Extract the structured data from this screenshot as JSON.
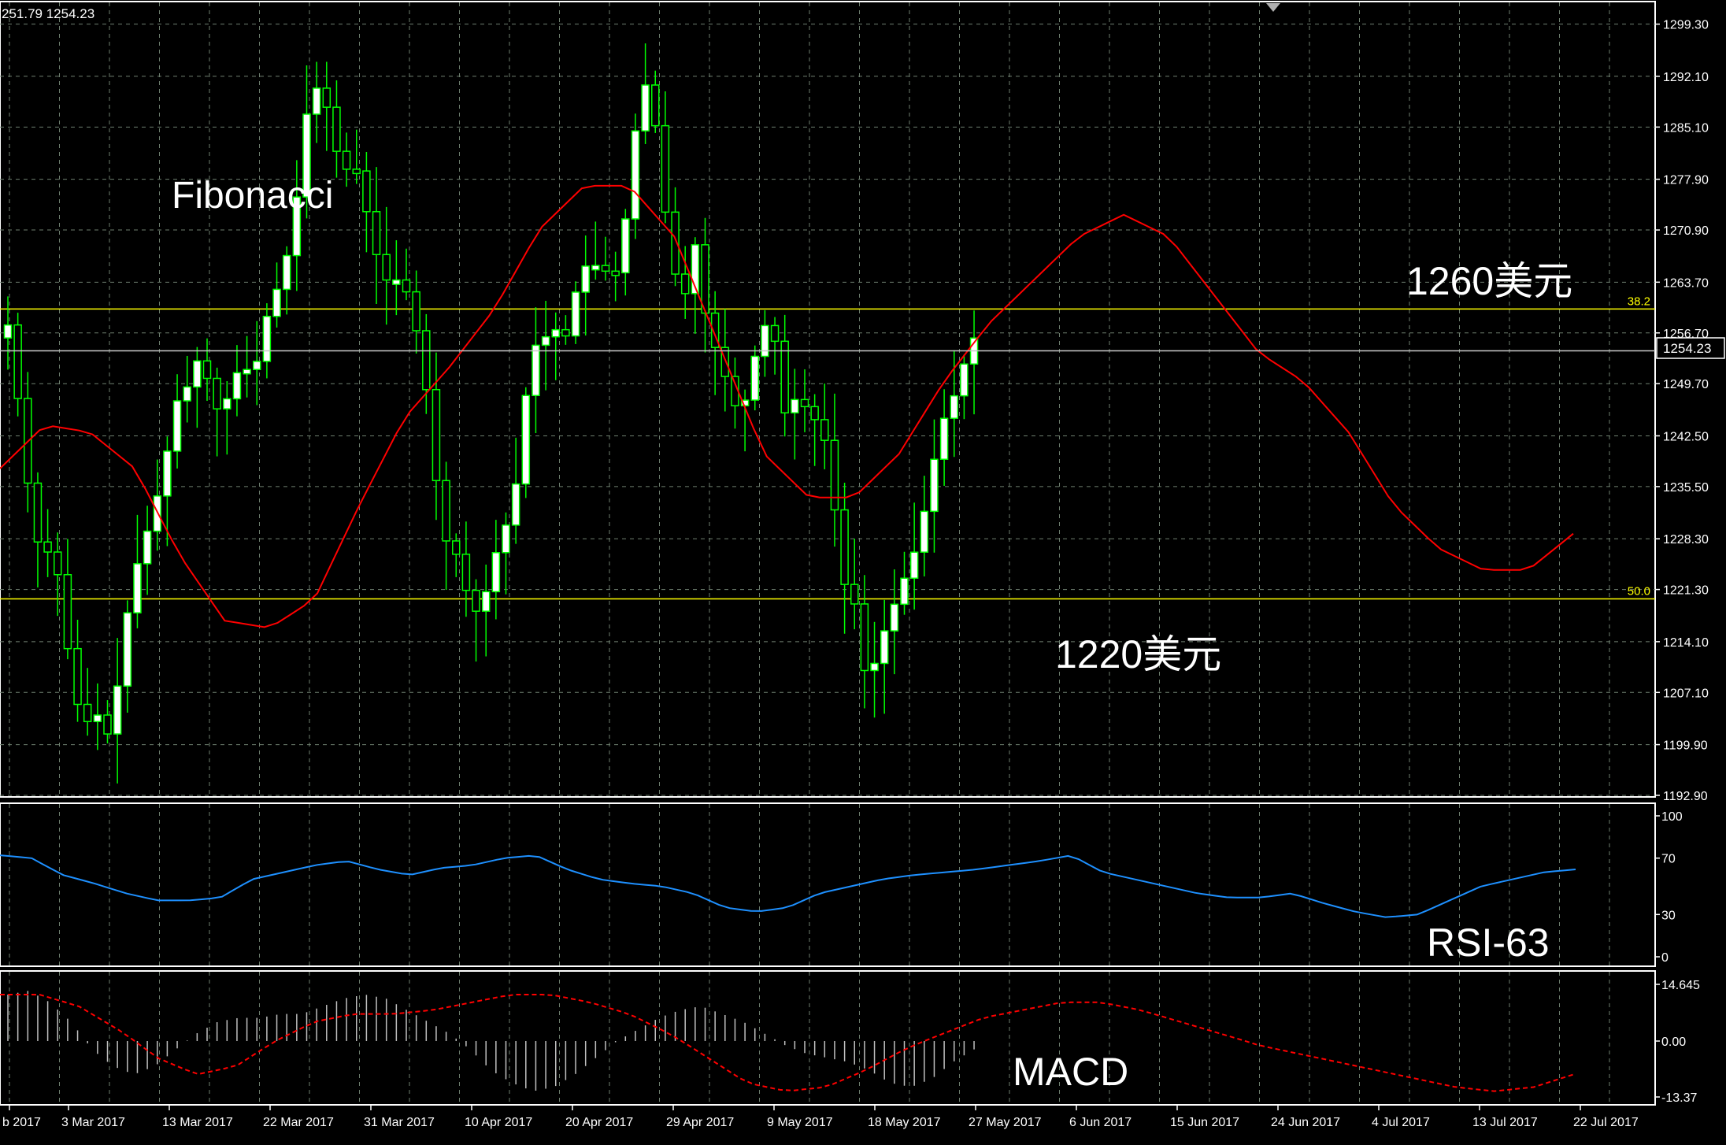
{
  "chart_data": {
    "type": "candlestick",
    "header_text": "251.79 1254.23",
    "current_price": "1254.23",
    "annotations": {
      "fibonacci": "Fibonacci",
      "upper_price": "1260美元",
      "lower_price": "1220美元",
      "rsi": "RSI-63",
      "macd": "MACD"
    },
    "price_axis": {
      "ylim": [
        1192.9,
        1301.0
      ],
      "ticks": [
        "1299.30",
        "1292.10",
        "1285.10",
        "1277.90",
        "1270.90",
        "1263.70",
        "1256.70",
        "1249.70",
        "1242.50",
        "1235.50",
        "1228.30",
        "1221.30",
        "1214.10",
        "1207.10",
        "1199.90",
        "1192.90"
      ]
    },
    "fib_levels": [
      {
        "label": "38.2",
        "value": 1260.0
      },
      {
        "label": "50.0",
        "value": 1220.0
      }
    ],
    "x_ticks": [
      "b 2017",
      "3 Mar 2017",
      "13 Mar 2017",
      "22 Mar 2017",
      "31 Mar 2017",
      "10 Apr 2017",
      "20 Apr 2017",
      "29 Apr 2017",
      "9 May 2017",
      "18 May 2017",
      "27 May 2017",
      "6 Jun 2017",
      "15 Jun 2017",
      "24 Jun 2017",
      "4 Jul 2017",
      "13 Jul 2017",
      "22 Jul 2017"
    ],
    "rsi_axis": {
      "ylim": [
        0,
        100
      ],
      "ticks": [
        "100",
        "70",
        "30",
        "0"
      ]
    },
    "macd_axis": {
      "ylim": [
        -13.37,
        14.645
      ],
      "ticks": [
        "14.645",
        "0.00",
        "-13.37"
      ]
    },
    "candle_waypoints": [
      1256,
      1258,
      1245,
      1232,
      1225,
      1228,
      1216,
      1206,
      1203,
      1204,
      1201,
      1210,
      1222,
      1227,
      1232,
      1238,
      1247,
      1249,
      1253,
      1250,
      1245,
      1249,
      1253,
      1250,
      1258,
      1262,
      1267,
      1276,
      1289,
      1291,
      1286,
      1278,
      1281,
      1275,
      1268,
      1264,
      1264,
      1262,
      1255,
      1245,
      1228,
      1228,
      1222,
      1218,
      1221,
      1227,
      1231,
      1238,
      1255,
      1255,
      1258,
      1255,
      1262,
      1266,
      1266,
      1265,
      1265,
      1278,
      1292,
      1289,
      1275,
      1265,
      1262,
      1270,
      1256,
      1254,
      1248,
      1245,
      1252,
      1258,
      1256,
      1245,
      1248,
      1246,
      1244,
      1240,
      1222,
      1222,
      1210,
      1211,
      1216,
      1220,
      1224,
      1228,
      1236,
      1244,
      1247,
      1252,
      1256
    ],
    "ma_waypoints": [
      1238,
      1244,
      1243,
      1238,
      1226,
      1217,
      1216,
      1220,
      1233,
      1245,
      1252,
      1260,
      1271,
      1277,
      1277,
      1270,
      1255,
      1240,
      1234,
      1234,
      1240,
      1250,
      1258,
      1264,
      1270,
      1273,
      1270,
      1262,
      1254,
      1250,
      1243,
      1233,
      1227,
      1224,
      1224,
      1229
    ],
    "rsi_waypoints": [
      72,
      70,
      58,
      52,
      45,
      40,
      40,
      42,
      55,
      60,
      65,
      68,
      62,
      58,
      63,
      65,
      70,
      72,
      62,
      55,
      52,
      50,
      45,
      35,
      32,
      35,
      45,
      50,
      55,
      58,
      60,
      62,
      65,
      68,
      72,
      60,
      55,
      50,
      45,
      42,
      42,
      45,
      38,
      32,
      28,
      30,
      40,
      50,
      55,
      60,
      62
    ],
    "macd_hist_waypoints": [
      12,
      13,
      10,
      5,
      -2,
      -6,
      -8,
      -6,
      -2,
      2,
      5,
      6,
      6,
      7,
      7,
      9,
      11,
      12,
      11,
      8,
      5,
      2,
      -2,
      -7,
      -10,
      -12,
      -11,
      -8,
      -4,
      0,
      3,
      6,
      8,
      9,
      7,
      5,
      2,
      -1,
      -3,
      -4,
      -5,
      -7,
      -10,
      -11,
      -9,
      -5,
      -2
    ],
    "macd_signal_waypoints": [
      12,
      12,
      9,
      3,
      -4,
      -8,
      -6,
      0,
      5,
      7,
      7,
      8,
      10,
      12,
      12,
      10,
      7,
      2,
      -4,
      -10,
      -12,
      -11,
      -7,
      -2,
      2,
      6,
      8,
      10,
      10,
      8,
      5,
      2,
      -1,
      -3,
      -5,
      -7,
      -9,
      -11,
      -12,
      -11,
      -8
    ],
    "colors": {
      "background": "#000000",
      "grid": "#6f8070",
      "candle": "#00ff00",
      "candle_body_fill": "#ffffff",
      "ma_line": "#ff0000",
      "fib_line": "#ffff00",
      "rsi_line": "#1e90ff",
      "macd_hist": "#c0c0c0",
      "macd_signal": "#ff0000",
      "axis_text": "#ffffff",
      "price_line": "#ffffff"
    },
    "grid": true
  }
}
